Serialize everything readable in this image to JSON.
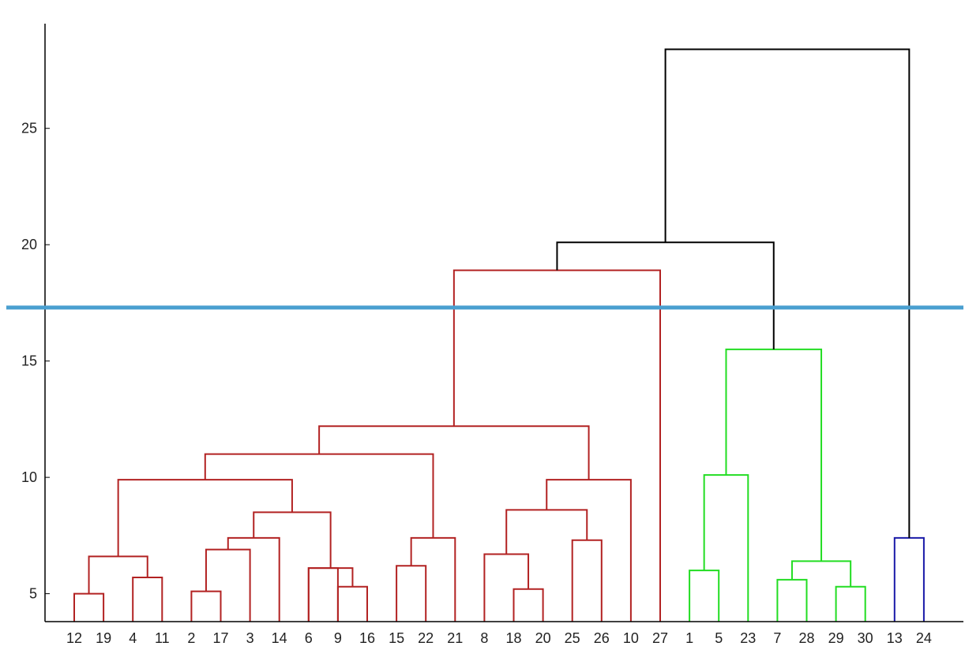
{
  "chart_data": {
    "type": "dendrogram",
    "title": "",
    "xlabel": "",
    "ylabel": "",
    "ylim": [
      3.8,
      29.5
    ],
    "y_ticks": [
      5,
      10,
      15,
      20,
      25
    ],
    "y_tick_labels": [
      "5",
      "10",
      "15",
      "20",
      "25"
    ],
    "leaf_order": [
      "12",
      "19",
      "4",
      "11",
      "2",
      "17",
      "3",
      "14",
      "6",
      "9",
      "16",
      "15",
      "22",
      "21",
      "8",
      "18",
      "20",
      "25",
      "26",
      "10",
      "27",
      "1",
      "5",
      "23",
      "7",
      "28",
      "29",
      "30",
      "13",
      "24"
    ],
    "cut_line": {
      "height": 17.3,
      "color": "#4a9fd0"
    },
    "colors": {
      "cluster_red": "#b22222",
      "cluster_green": "#22dd22",
      "cluster_blue": "#1a1aa8",
      "above_threshold": "#000000",
      "axis": "#000000"
    },
    "merges": [
      {
        "left": "12",
        "right": "19",
        "height": 5.0,
        "color": "cluster_red"
      },
      {
        "left": "4",
        "right": "11",
        "height": 5.7,
        "color": "cluster_red"
      },
      {
        "left": "2",
        "right": "17",
        "height": 5.1,
        "color": "cluster_red"
      },
      {
        "left": "6",
        "right": "9",
        "height": 6.1,
        "color": "cluster_red"
      },
      {
        "left": "9",
        "right": "16",
        "height": 5.3,
        "color": "cluster_red"
      },
      {
        "left": "15",
        "right": "22",
        "height": 6.2,
        "color": "cluster_red"
      },
      {
        "left": "18",
        "right": "20",
        "height": 5.2,
        "color": "cluster_red"
      },
      {
        "left": "25",
        "right": "26",
        "height": 7.3,
        "color": "cluster_red"
      },
      {
        "left": "1",
        "right": "5",
        "height": 6.0,
        "color": "cluster_green"
      },
      {
        "left": "7",
        "right": "28",
        "height": 5.6,
        "color": "cluster_green"
      },
      {
        "left": "29",
        "right": "30",
        "height": 5.3,
        "color": "cluster_green"
      },
      {
        "left": "13",
        "right": "24",
        "height": 7.4,
        "color": "cluster_blue"
      }
    ]
  }
}
